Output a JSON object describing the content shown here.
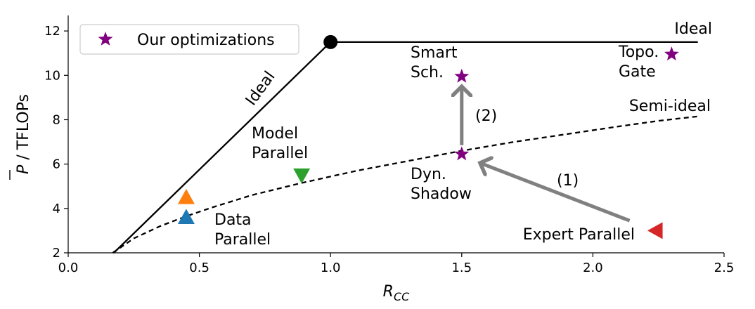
{
  "chart_data": {
    "type": "scatter",
    "xlabel_main": "R",
    "xlabel_sub": "CC",
    "ylabel_symbol": "P",
    "ylabel_rest": " / TFLOPs",
    "xlim": [
      0.0,
      2.5
    ],
    "ylim": [
      2,
      12.7
    ],
    "xticks": [
      0.0,
      0.5,
      1.0,
      1.5,
      2.0,
      2.5
    ],
    "xtick_labels": [
      "0.0",
      "0.5",
      "1.0",
      "1.5",
      "2.0",
      "2.5"
    ],
    "yticks": [
      2,
      4,
      6,
      8,
      10,
      12
    ],
    "ytick_labels": [
      "2",
      "4",
      "6",
      "8",
      "10",
      "12"
    ],
    "grid": false,
    "legend": {
      "position": "top-left",
      "entries": [
        {
          "label": "Our optimizations",
          "marker": "star",
          "color": "#800080"
        }
      ]
    },
    "ideal_line": {
      "label": "Ideal",
      "peak_x": 1.0,
      "peak_y": 11.5,
      "end_x": 2.4
    },
    "ideal_slope_label": "Ideal",
    "semi_ideal_label": "Semi-ideal",
    "semi_ideal_curve": {
      "x": [
        0.17,
        0.25,
        0.35,
        0.45,
        0.55,
        0.7,
        0.89,
        1.1,
        1.3,
        1.5,
        1.7,
        1.9,
        2.1,
        2.25,
        2.4
      ],
      "y": [
        2.0,
        2.65,
        3.2,
        3.65,
        4.05,
        4.6,
        5.15,
        5.7,
        6.15,
        6.6,
        7.0,
        7.35,
        7.7,
        7.95,
        8.15
      ]
    },
    "points": [
      {
        "name": "data-parallel",
        "x": 0.45,
        "y": 3.6,
        "marker": "triangle-up",
        "color": "#1f77b4"
      },
      {
        "name": "data-parallel-ideal",
        "x": 0.45,
        "y": 4.5,
        "marker": "triangle-up",
        "color": "#ff7f0e"
      },
      {
        "name": "model-parallel",
        "x": 0.89,
        "y": 5.5,
        "marker": "triangle-down",
        "color": "#2ca02c"
      },
      {
        "name": "expert-parallel",
        "x": 2.24,
        "y": 3.0,
        "marker": "triangle-left",
        "color": "#d62728"
      },
      {
        "name": "dyn-shadow",
        "x": 1.5,
        "y": 6.45,
        "marker": "star",
        "color": "#800080"
      },
      {
        "name": "smart-sch",
        "x": 1.5,
        "y": 9.95,
        "marker": "star",
        "color": "#800080"
      },
      {
        "name": "topo-gate",
        "x": 2.3,
        "y": 10.95,
        "marker": "star",
        "color": "#800080"
      },
      {
        "name": "ideal-peak",
        "x": 1.0,
        "y": 11.5,
        "marker": "circle",
        "color": "#000000"
      }
    ],
    "point_labels": [
      {
        "name": "label-data-parallel",
        "lines": [
          "Data",
          "Parallel"
        ]
      },
      {
        "name": "label-model-parallel",
        "lines": [
          "Model",
          "Parallel"
        ]
      },
      {
        "name": "label-expert-parallel",
        "lines": [
          "Expert Parallel"
        ]
      },
      {
        "name": "label-dyn-shadow",
        "lines": [
          "Dyn.",
          "Shadow"
        ]
      },
      {
        "name": "label-smart-sch",
        "lines": [
          "Smart",
          "Sch."
        ]
      },
      {
        "name": "label-topo-gate",
        "lines": [
          "Topo.",
          "Gate"
        ]
      }
    ],
    "arrows": [
      {
        "name": "arrow-1",
        "label": "(1)",
        "from": [
          2.14,
          3.45
        ],
        "to": [
          1.57,
          6.05
        ],
        "color": "#808080"
      },
      {
        "name": "arrow-2",
        "label": "(2)",
        "from": [
          1.5,
          6.85
        ],
        "to": [
          1.5,
          9.5
        ],
        "color": "#808080"
      }
    ]
  }
}
